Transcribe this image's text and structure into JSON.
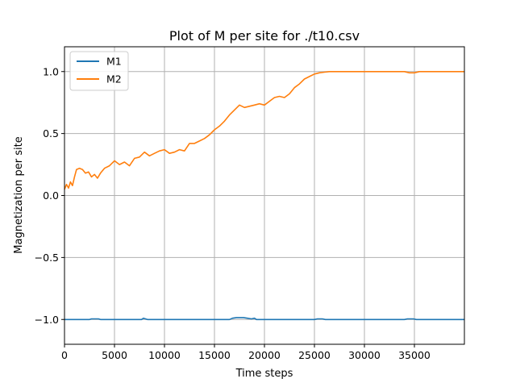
{
  "chart_data": {
    "type": "line",
    "title": "Plot of M per site for ./t10.csv",
    "xlabel": "Time steps",
    "ylabel": "Magnetization per site",
    "xlim": [
      0,
      40000
    ],
    "ylim": [
      -1.2,
      1.2
    ],
    "xticks": [
      0,
      5000,
      10000,
      15000,
      20000,
      25000,
      30000,
      35000
    ],
    "xtick_labels": [
      "0",
      "5000",
      "10000",
      "15000",
      "20000",
      "25000",
      "30000",
      "35000"
    ],
    "yticks": [
      -1.0,
      -0.5,
      0.0,
      0.5,
      1.0
    ],
    "ytick_labels": [
      "−1.0",
      "−0.5",
      "0.0",
      "0.5",
      "1.0"
    ],
    "grid": true,
    "legend_position": "top-left",
    "series": [
      {
        "name": "M1",
        "color": "#1f77b4",
        "x": [
          0,
          2500,
          2700,
          3400,
          3600,
          7700,
          7900,
          8100,
          8300,
          16500,
          16800,
          17200,
          17900,
          18300,
          18700,
          19000,
          19200,
          25000,
          25300,
          25800,
          26100,
          34000,
          34300,
          34900,
          35200,
          40000
        ],
        "y": [
          -1.0,
          -1.0,
          -0.995,
          -0.995,
          -1.0,
          -1.0,
          -0.99,
          -0.995,
          -1.0,
          -1.0,
          -0.99,
          -0.985,
          -0.985,
          -0.99,
          -0.995,
          -0.99,
          -1.0,
          -1.0,
          -0.995,
          -0.995,
          -1.0,
          -1.0,
          -0.995,
          -0.995,
          -1.0,
          -1.0
        ]
      },
      {
        "name": "M2",
        "color": "#ff7f0e",
        "x": [
          0,
          200,
          400,
          600,
          800,
          1000,
          1200,
          1500,
          1800,
          2100,
          2400,
          2700,
          3000,
          3300,
          3600,
          4000,
          4500,
          5000,
          5500,
          6000,
          6500,
          7000,
          7500,
          8000,
          8500,
          9000,
          9500,
          10000,
          10500,
          11000,
          11500,
          12000,
          12500,
          13000,
          13500,
          14000,
          14500,
          15000,
          15500,
          16000,
          16500,
          17000,
          17500,
          18000,
          18500,
          19000,
          19500,
          20000,
          20500,
          21000,
          21500,
          22000,
          22500,
          23000,
          23500,
          24000,
          24500,
          25000,
          25500,
          26000,
          26500,
          27000,
          30000,
          34000,
          34500,
          35000,
          35500,
          40000
        ],
        "y": [
          0.05,
          0.09,
          0.06,
          0.11,
          0.08,
          0.15,
          0.21,
          0.22,
          0.21,
          0.18,
          0.19,
          0.15,
          0.17,
          0.14,
          0.18,
          0.22,
          0.24,
          0.28,
          0.25,
          0.27,
          0.24,
          0.3,
          0.31,
          0.35,
          0.32,
          0.34,
          0.36,
          0.37,
          0.34,
          0.35,
          0.37,
          0.36,
          0.42,
          0.42,
          0.44,
          0.46,
          0.49,
          0.53,
          0.56,
          0.6,
          0.65,
          0.69,
          0.73,
          0.71,
          0.72,
          0.73,
          0.74,
          0.73,
          0.76,
          0.79,
          0.8,
          0.79,
          0.82,
          0.87,
          0.9,
          0.94,
          0.96,
          0.98,
          0.99,
          0.995,
          1.0,
          1.0,
          1.0,
          1.0,
          0.99,
          0.99,
          1.0,
          1.0
        ]
      }
    ]
  }
}
